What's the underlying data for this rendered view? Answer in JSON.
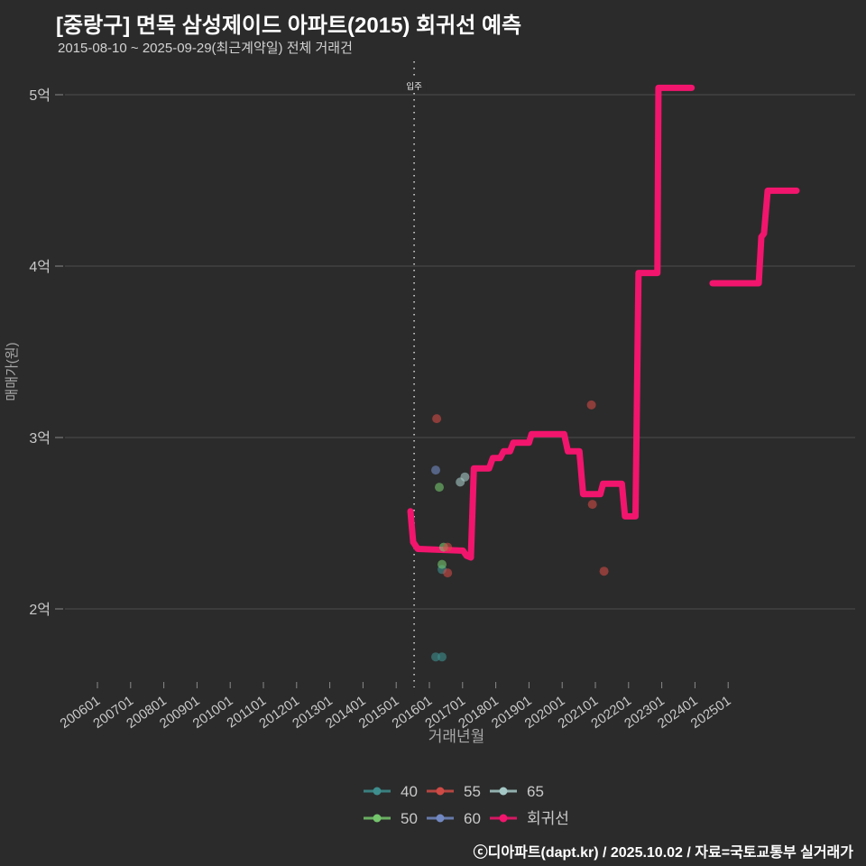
{
  "header": {
    "title": "[중랑구] 면목 삼성제이드 아파트(2015) 회귀선 예측",
    "subtitle": "2015-08-10 ~ 2025-09-29(최근계약일) 전체 거래건"
  },
  "footer": {
    "credit": "ⓒ디아파트(dapt.kr) / 2025.10.02 / 자료=국토교통부 실거래가"
  },
  "colors": {
    "background": "#2b2b2b",
    "grid": "#4d4d4d",
    "tick": "#8a8a8a",
    "tick_label": "#c9c9c9",
    "axis_title": "#a8a8a8",
    "annotation": "#e8e8e8",
    "regression": "#f2156d"
  },
  "chart_data": {
    "type": "line+scatter",
    "title": "[중랑구] 면목 삼성제이드 아파트(2015) 회귀선 예측",
    "subtitle": "2015-08-10 ~ 2025-09-29(최근계약일) 전체 거래건",
    "xlabel": "거래년월",
    "ylabel": "매매가(원)",
    "grid": true,
    "legend_position": "bottom",
    "y_unit": "억",
    "ylim": [
      1.4,
      5.3
    ],
    "y_ticks": [
      {
        "label": "2억",
        "value": 2
      },
      {
        "label": "3억",
        "value": 3
      },
      {
        "label": "4억",
        "value": 4
      },
      {
        "label": "5억",
        "value": 5
      }
    ],
    "x_ticks": [
      {
        "label": "200601",
        "year": 2006
      },
      {
        "label": "200701",
        "year": 2007
      },
      {
        "label": "200801",
        "year": 2008
      },
      {
        "label": "200901",
        "year": 2009
      },
      {
        "label": "201001",
        "year": 2010
      },
      {
        "label": "201101",
        "year": 2011
      },
      {
        "label": "201201",
        "year": 2012
      },
      {
        "label": "201301",
        "year": 2013
      },
      {
        "label": "201401",
        "year": 2014
      },
      {
        "label": "201501",
        "year": 2015
      },
      {
        "label": "201601",
        "year": 2016
      },
      {
        "label": "201701",
        "year": 2017
      },
      {
        "label": "201801",
        "year": 2018
      },
      {
        "label": "201901",
        "year": 2019
      },
      {
        "label": "202001",
        "year": 2020
      },
      {
        "label": "202101",
        "year": 2021
      },
      {
        "label": "202201",
        "year": 2022
      },
      {
        "label": "202301",
        "year": 2023
      },
      {
        "label": "202401",
        "year": 2024
      },
      {
        "label": "202501",
        "year": 2025
      }
    ],
    "annotation": {
      "label": "입주",
      "year": 2015.54
    },
    "series": [
      {
        "name": "40",
        "type": "scatter",
        "color": "#3e8e8e",
        "points": [
          [
            2016.19,
            1.72
          ],
          [
            2016.38,
            1.72
          ],
          [
            2016.38,
            2.23
          ]
        ]
      },
      {
        "name": "50",
        "type": "scatter",
        "color": "#74c56c",
        "points": [
          [
            2016.3,
            2.71
          ],
          [
            2016.43,
            2.36
          ],
          [
            2016.38,
            2.26
          ]
        ]
      },
      {
        "name": "55",
        "type": "scatter",
        "color": "#cf4a45",
        "points": [
          [
            2016.22,
            3.11
          ],
          [
            2016.55,
            2.36
          ],
          [
            2016.55,
            2.21
          ],
          [
            2020.88,
            3.19
          ],
          [
            2020.91,
            2.61
          ],
          [
            2021.26,
            2.22
          ]
        ]
      },
      {
        "name": "60",
        "type": "scatter",
        "color": "#7288c2",
        "points": [
          [
            2016.19,
            2.81
          ]
        ]
      },
      {
        "name": "65",
        "type": "scatter",
        "color": "#a5c8c6",
        "points": [
          [
            2016.93,
            2.74
          ],
          [
            2017.07,
            2.77
          ]
        ]
      },
      {
        "name": "회귀선",
        "type": "line",
        "color": "#f2156d",
        "segments": [
          [
            [
              2015.43,
              2.57
            ],
            [
              2015.51,
              2.39
            ],
            [
              2015.65,
              2.35
            ],
            [
              2017.01,
              2.34
            ],
            [
              2017.12,
              2.31
            ],
            [
              2017.25,
              2.3
            ],
            [
              2017.34,
              2.82
            ],
            [
              2017.8,
              2.82
            ],
            [
              2017.91,
              2.88
            ],
            [
              2018.13,
              2.88
            ],
            [
              2018.24,
              2.92
            ],
            [
              2018.43,
              2.92
            ],
            [
              2018.53,
              2.97
            ],
            [
              2019.0,
              2.97
            ],
            [
              2019.08,
              3.02
            ],
            [
              2020.06,
              3.02
            ],
            [
              2020.17,
              2.92
            ],
            [
              2020.52,
              2.92
            ],
            [
              2020.63,
              2.67
            ],
            [
              2021.15,
              2.67
            ],
            [
              2021.23,
              2.73
            ],
            [
              2021.8,
              2.73
            ],
            [
              2021.89,
              2.54
            ],
            [
              2022.21,
              2.54
            ],
            [
              2022.3,
              3.96
            ],
            [
              2022.87,
              3.96
            ],
            [
              2022.9,
              5.04
            ],
            [
              2023.9,
              5.04
            ]
          ],
          [
            [
              2024.53,
              3.9
            ],
            [
              2025.92,
              3.9
            ],
            [
              2026.0,
              4.17
            ],
            [
              2026.08,
              4.19
            ],
            [
              2026.19,
              4.44
            ],
            [
              2027.06,
              4.44
            ]
          ]
        ]
      }
    ],
    "legend_rows": [
      [
        "40",
        "55",
        "65"
      ],
      [
        "50",
        "60",
        "회귀선"
      ]
    ]
  }
}
